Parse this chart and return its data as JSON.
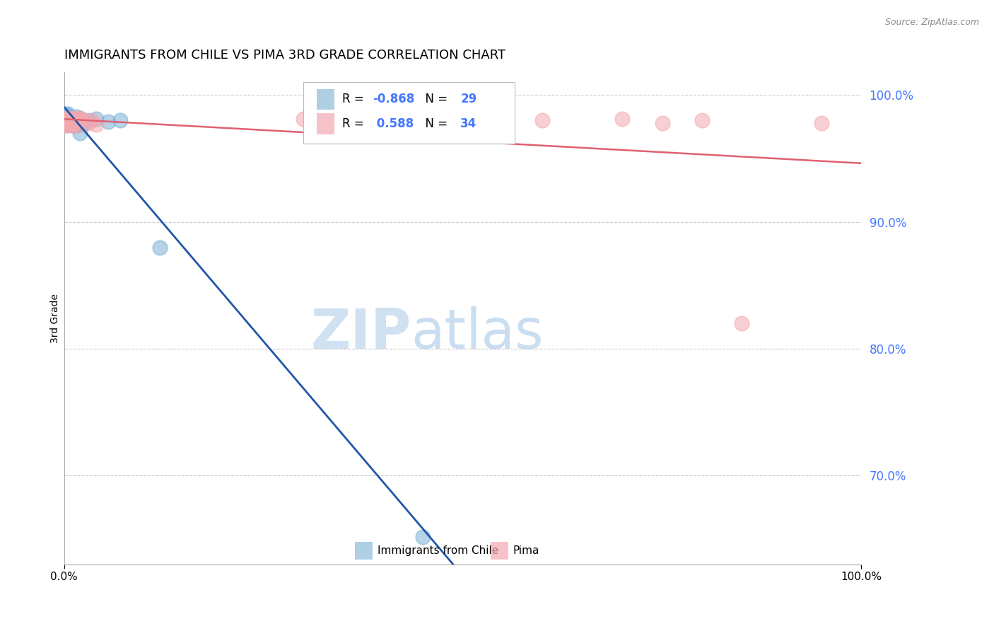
{
  "title": "IMMIGRANTS FROM CHILE VS PIMA 3RD GRADE CORRELATION CHART",
  "source": "Source: ZipAtlas.com",
  "ylabel": "3rd Grade",
  "right_yticks": [
    0.7,
    0.8,
    0.9,
    1.0
  ],
  "right_ytick_labels": [
    "70.0%",
    "80.0%",
    "90.0%",
    "100.0%"
  ],
  "legend_r_blue": "-0.868",
  "legend_n_blue": "29",
  "legend_r_pink": "0.588",
  "legend_n_pink": "34",
  "blue_color": "#7BAFD4",
  "pink_color": "#F4A8B0",
  "blue_line_color": "#2255AA",
  "pink_line_color": "#E06070",
  "blue_scatter_x": [
    0.001,
    0.002,
    0.003,
    0.003,
    0.004,
    0.005,
    0.005,
    0.006,
    0.007,
    0.008,
    0.009,
    0.01,
    0.011,
    0.012,
    0.013,
    0.014,
    0.015,
    0.016,
    0.018,
    0.02,
    0.025,
    0.03,
    0.04,
    0.055,
    0.07,
    0.015,
    0.02,
    0.12,
    0.45
  ],
  "blue_scatter_y": [
    0.985,
    0.982,
    0.98,
    0.979,
    0.978,
    0.985,
    0.976,
    0.983,
    0.981,
    0.977,
    0.979,
    0.98,
    0.982,
    0.976,
    0.981,
    0.978,
    0.983,
    0.98,
    0.977,
    0.982,
    0.978,
    0.98,
    0.981,
    0.979,
    0.98,
    0.976,
    0.97,
    0.88,
    0.652
  ],
  "pink_scatter_x": [
    0.001,
    0.002,
    0.003,
    0.004,
    0.004,
    0.005,
    0.006,
    0.006,
    0.007,
    0.008,
    0.009,
    0.01,
    0.011,
    0.012,
    0.013,
    0.014,
    0.015,
    0.016,
    0.017,
    0.018,
    0.02,
    0.025,
    0.03,
    0.035,
    0.04,
    0.3,
    0.4,
    0.5,
    0.6,
    0.7,
    0.75,
    0.8,
    0.85,
    0.95
  ],
  "pink_scatter_y": [
    0.978,
    0.976,
    0.98,
    0.981,
    0.982,
    0.977,
    0.98,
    0.979,
    0.981,
    0.978,
    0.982,
    0.976,
    0.98,
    0.981,
    0.977,
    0.982,
    0.979,
    0.98,
    0.976,
    0.981,
    0.982,
    0.98,
    0.978,
    0.98,
    0.977,
    0.981,
    0.982,
    0.977,
    0.98,
    0.981,
    0.978,
    0.98,
    0.82,
    0.978
  ],
  "xlim": [
    0.0,
    1.0
  ],
  "ylim": [
    0.63,
    1.018
  ],
  "background_color": "#ffffff",
  "grid_color": "#cccccc",
  "text_blue": "#4477FF",
  "watermark_zip_color": "#BDD5EC",
  "watermark_atlas_color": "#A8C8E8"
}
